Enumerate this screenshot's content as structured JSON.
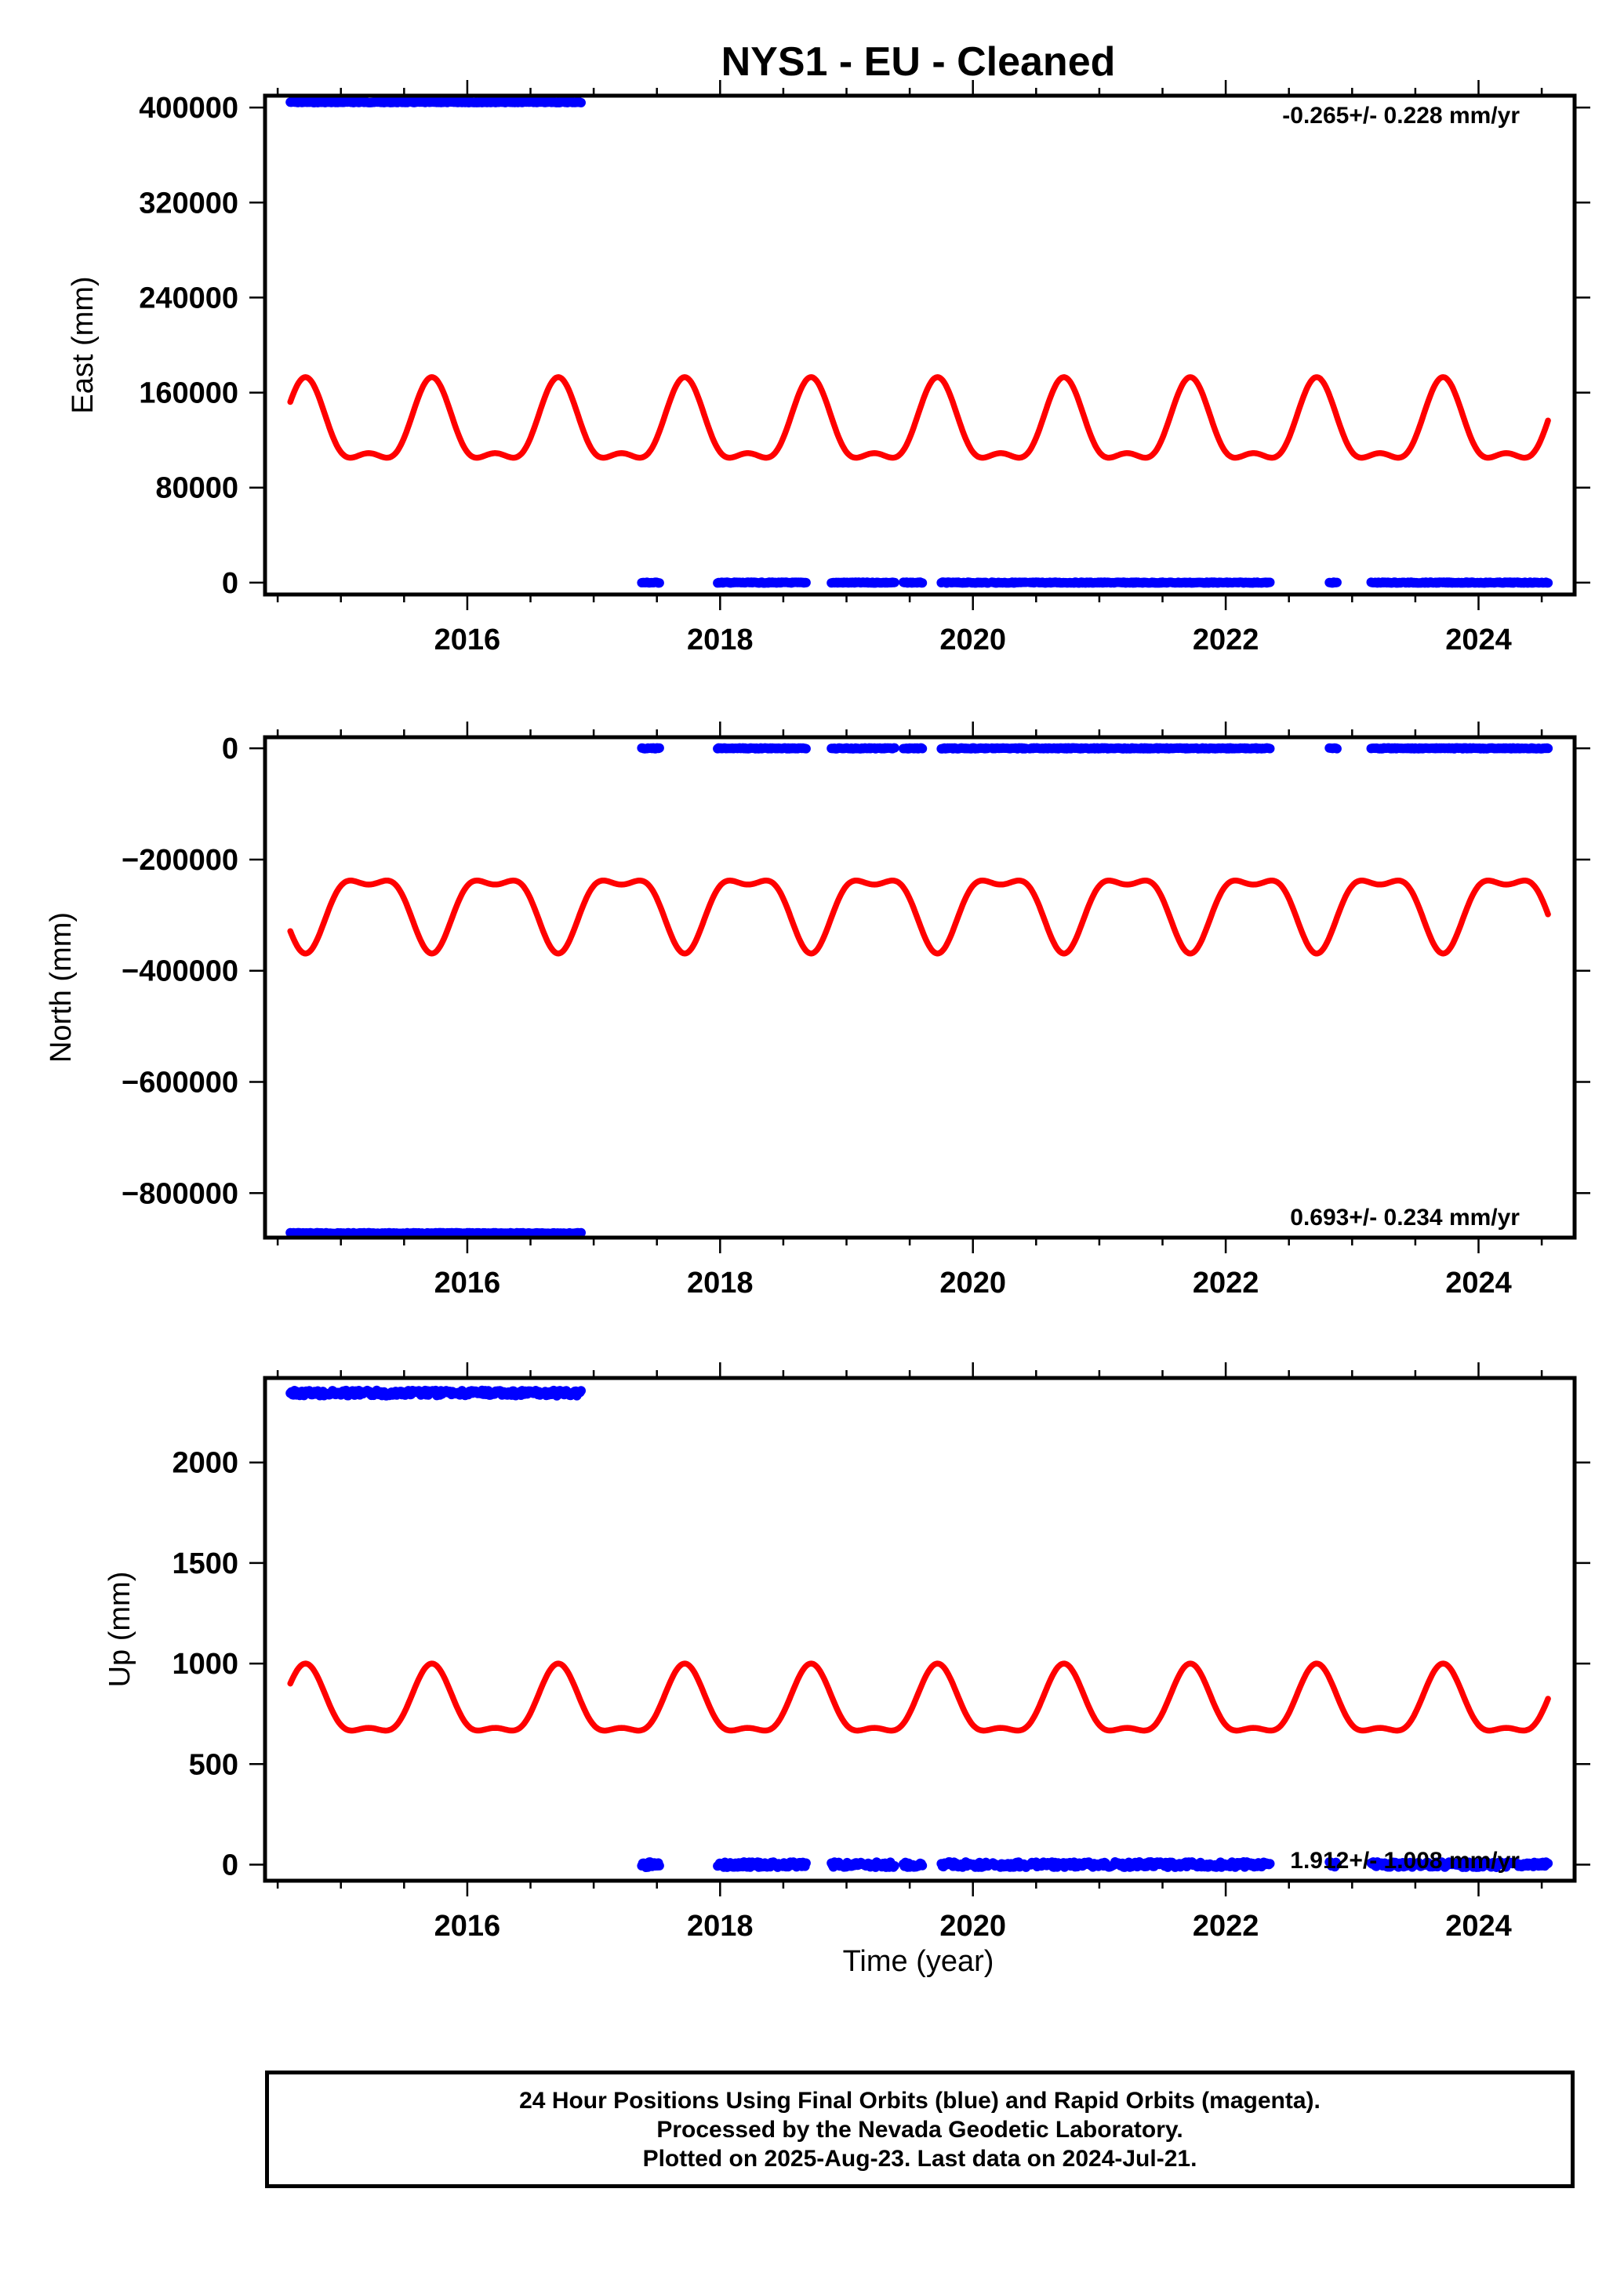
{
  "title": "NYS1  - EU - Cleaned",
  "xlabel": "Time (year)",
  "colors": {
    "final_orbits": "#0000ff",
    "fit_curve": "#ff0000",
    "frame": "#000000"
  },
  "footer": {
    "line1": "24 Hour Positions Using Final Orbits (blue) and Rapid Orbits (magenta).",
    "line2": "Processed by the Nevada Geodetic Laboratory.",
    "line3": "Plotted on 2025-Aug-23. Last data on 2024-Jul-21."
  },
  "chart_data": [
    {
      "type": "scatter",
      "panel": "east",
      "ylabel": "East (mm)",
      "rate_text": "-0.265+/- 0.228 mm/yr",
      "xlim": [
        2014.4,
        2024.76
      ],
      "ylim": [
        -10000,
        410000
      ],
      "xticks": [
        2016,
        2018,
        2020,
        2022,
        2024
      ],
      "yticks": [
        0,
        80000,
        160000,
        240000,
        320000,
        400000
      ],
      "ytick_labels": [
        "0",
        "80000",
        "160000",
        "240000",
        "320000",
        "400000"
      ],
      "series": [
        {
          "kind": "scatter",
          "color": "#0000ff",
          "segments": [
            {
              "x": [
                2014.6,
                2016.9
              ],
              "y": 404500
            },
            {
              "x": [
                2017.38,
                2017.52
              ],
              "y": 0
            },
            {
              "x": [
                2017.98,
                2018.68
              ],
              "y": 0
            },
            {
              "x": [
                2018.88,
                2019.38
              ],
              "y": 0
            },
            {
              "x": [
                2019.45,
                2019.6
              ],
              "y": 0
            },
            {
              "x": [
                2019.75,
                2020.12
              ],
              "y": 0
            },
            {
              "x": [
                2020.15,
                2020.42
              ],
              "y": 0
            },
            {
              "x": [
                2020.45,
                2022.35
              ],
              "y": 0
            },
            {
              "x": [
                2022.82,
                2022.88
              ],
              "y": 0
            },
            {
              "x": [
                2023.15,
                2024.55
              ],
              "y": 0
            }
          ]
        },
        {
          "kind": "fit",
          "color": "#ff0000",
          "x_start": 2014.6,
          "x_end": 2024.55,
          "center": 128000,
          "annual_amp": 32000,
          "semiannual_amp": 13000,
          "phase_year": 2015.72
        }
      ]
    },
    {
      "type": "scatter",
      "panel": "north",
      "ylabel": "North (mm)",
      "rate_text": "0.693+/- 0.234 mm/yr",
      "xlim": [
        2014.4,
        2024.76
      ],
      "ylim": [
        -880000,
        20000
      ],
      "xticks": [
        2016,
        2018,
        2020,
        2022,
        2024
      ],
      "yticks": [
        0,
        -200000,
        -400000,
        -600000,
        -800000
      ],
      "ytick_labels": [
        "0",
        "−200000",
        "−400000",
        "−600000",
        "−800000"
      ],
      "series": [
        {
          "kind": "scatter",
          "color": "#0000ff",
          "segments": [
            {
              "x": [
                2014.6,
                2016.9
              ],
              "y": -872000
            },
            {
              "x": [
                2017.38,
                2017.52
              ],
              "y": 0
            },
            {
              "x": [
                2017.98,
                2018.68
              ],
              "y": 0
            },
            {
              "x": [
                2018.88,
                2019.38
              ],
              "y": 0
            },
            {
              "x": [
                2019.45,
                2019.6
              ],
              "y": 0
            },
            {
              "x": [
                2019.75,
                2020.12
              ],
              "y": 0
            },
            {
              "x": [
                2020.15,
                2020.42
              ],
              "y": 0
            },
            {
              "x": [
                2020.45,
                2022.35
              ],
              "y": 0
            },
            {
              "x": [
                2022.82,
                2022.88
              ],
              "y": 0
            },
            {
              "x": [
                2023.15,
                2024.55
              ],
              "y": 0
            }
          ]
        },
        {
          "kind": "fit",
          "color": "#ff0000",
          "x_start": 2014.6,
          "x_end": 2024.55,
          "center": -282000,
          "annual_amp": -62000,
          "semiannual_amp": -25000,
          "phase_year": 2015.72
        }
      ]
    },
    {
      "type": "scatter",
      "panel": "up",
      "ylabel": "Up (mm)",
      "rate_text": "1.912+/- 1.008 mm/yr",
      "xlim": [
        2014.4,
        2024.76
      ],
      "ylim": [
        -80,
        2420
      ],
      "xticks": [
        2016,
        2018,
        2020,
        2022,
        2024
      ],
      "yticks": [
        0,
        500,
        1000,
        1500,
        2000
      ],
      "ytick_labels": [
        "0",
        "500",
        "1000",
        "1500",
        "2000"
      ],
      "series": [
        {
          "kind": "scatter",
          "color": "#0000ff",
          "segments": [
            {
              "x": [
                2014.6,
                2016.9
              ],
              "y": 2345
            },
            {
              "x": [
                2017.38,
                2017.52
              ],
              "y": 0
            },
            {
              "x": [
                2017.98,
                2018.68
              ],
              "y": 0
            },
            {
              "x": [
                2018.88,
                2019.38
              ],
              "y": 0
            },
            {
              "x": [
                2019.45,
                2019.6
              ],
              "y": 0
            },
            {
              "x": [
                2019.75,
                2020.12
              ],
              "y": 0
            },
            {
              "x": [
                2020.15,
                2020.42
              ],
              "y": 0
            },
            {
              "x": [
                2020.45,
                2022.35
              ],
              "y": 0
            },
            {
              "x": [
                2022.82,
                2022.88
              ],
              "y": 0
            },
            {
              "x": [
                2023.15,
                2024.55
              ],
              "y": 0
            }
          ]
        },
        {
          "kind": "fit",
          "color": "#ff0000",
          "x_start": 2014.6,
          "x_end": 2024.55,
          "center": 780,
          "annual_amp": 160,
          "semiannual_amp": 60,
          "phase_year": 2015.72
        }
      ]
    }
  ]
}
